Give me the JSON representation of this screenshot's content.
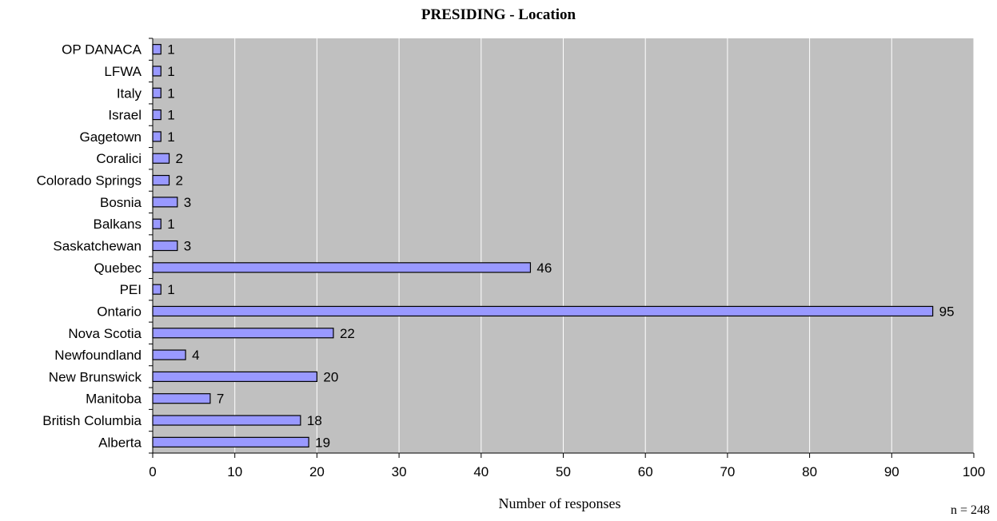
{
  "chart_data": {
    "type": "bar",
    "orientation": "horizontal",
    "title": "PRESIDING - Location",
    "xlabel": "Number of responses",
    "ylabel": "",
    "note": "n = 248",
    "xlim": [
      0,
      100
    ],
    "x_ticks": [
      "0",
      "10",
      "20",
      "30",
      "40",
      "50",
      "60",
      "70",
      "80",
      "90",
      "100"
    ],
    "grid": "vertical",
    "colors": {
      "plot_background": "#c0c0c0",
      "bar_fill": "#9999ff",
      "bar_stroke": "#000000",
      "gridline": "#ffffff"
    },
    "categories": [
      "OP DANACA",
      "LFWA",
      "Italy",
      "Israel",
      "Gagetown",
      "Coralici",
      "Colorado Springs",
      "Bosnia",
      "Balkans",
      "Saskatchewan",
      "Quebec",
      "PEI",
      "Ontario",
      "Nova Scotia",
      "Newfoundland",
      "New Brunswick",
      "Manitoba",
      "British Columbia",
      "Alberta"
    ],
    "values": [
      1,
      1,
      1,
      1,
      1,
      2,
      2,
      3,
      1,
      3,
      46,
      1,
      95,
      22,
      4,
      20,
      7,
      18,
      19
    ]
  }
}
